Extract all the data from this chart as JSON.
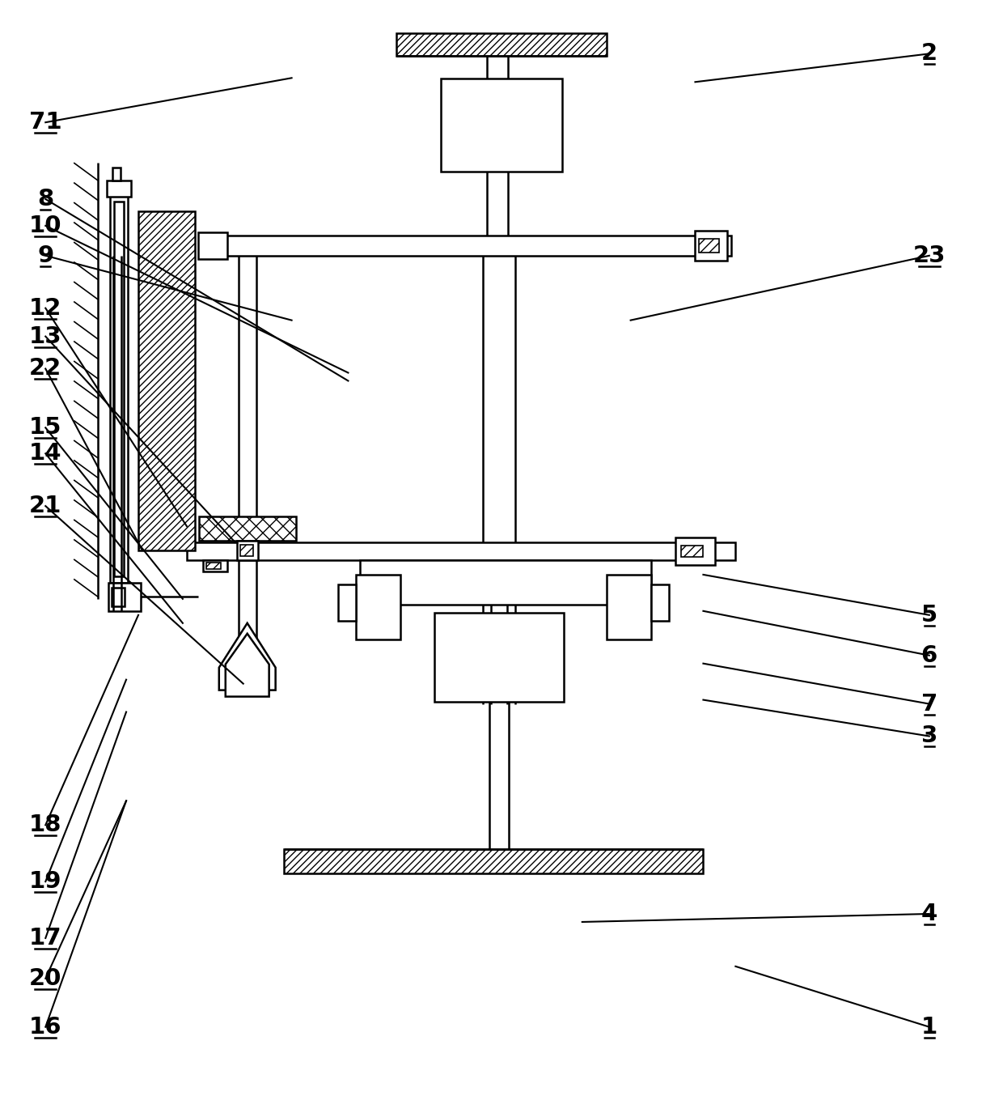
{
  "bg_color": "#ffffff",
  "lw": 1.8,
  "lw_thin": 1.2,
  "fig_width": 12.4,
  "fig_height": 13.54,
  "annotations": [
    [
      "1",
      1150,
      1270,
      910,
      1195,
      "right"
    ],
    [
      "2",
      1150,
      65,
      860,
      100,
      "right"
    ],
    [
      "3",
      1150,
      910,
      870,
      865,
      "right"
    ],
    [
      "4",
      1150,
      1130,
      720,
      1140,
      "right"
    ],
    [
      "5",
      1150,
      760,
      870,
      710,
      "right"
    ],
    [
      "6",
      1150,
      810,
      870,
      755,
      "right"
    ],
    [
      "7",
      1150,
      870,
      870,
      820,
      "right"
    ],
    [
      "8",
      55,
      245,
      430,
      470,
      "left"
    ],
    [
      "9",
      55,
      315,
      360,
      395,
      "left"
    ],
    [
      "10",
      55,
      278,
      430,
      460,
      "left"
    ],
    [
      "12",
      55,
      380,
      230,
      650,
      "left"
    ],
    [
      "13",
      55,
      415,
      290,
      670,
      "left"
    ],
    [
      "14",
      55,
      560,
      225,
      770,
      "left"
    ],
    [
      "15",
      55,
      528,
      225,
      740,
      "left"
    ],
    [
      "16",
      55,
      1270,
      155,
      990,
      "left"
    ],
    [
      "17",
      55,
      1160,
      155,
      880,
      "left"
    ],
    [
      "18",
      55,
      1020,
      170,
      760,
      "left"
    ],
    [
      "19",
      55,
      1090,
      155,
      840,
      "left"
    ],
    [
      "20",
      55,
      1210,
      155,
      990,
      "left"
    ],
    [
      "21",
      55,
      625,
      300,
      845,
      "left"
    ],
    [
      "22",
      55,
      455,
      175,
      680,
      "left"
    ],
    [
      "23",
      1150,
      315,
      780,
      395,
      "right"
    ],
    [
      "71",
      55,
      150,
      360,
      95,
      "left"
    ]
  ]
}
